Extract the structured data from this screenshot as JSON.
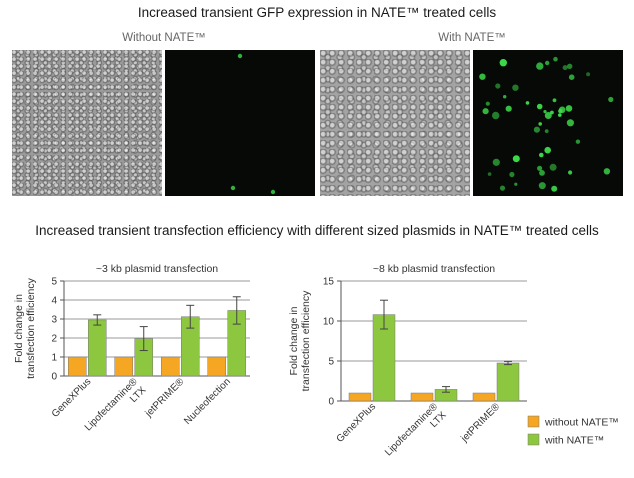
{
  "titles": {
    "top": "Increased transient GFP expression in NATE™ treated cells",
    "middle": "Increased transient transfection efficiency with different sized plasmids in NATE™ treated cells"
  },
  "image_panels": {
    "without_label": "Without NATE™",
    "with_label": "With NATE™"
  },
  "colors": {
    "without": "#f5a623",
    "with": "#8dc63f",
    "grid": "#999999",
    "gfp": "#3ddc4a"
  },
  "legend": [
    {
      "label": "without NATE™",
      "color": "#f5a623"
    },
    {
      "label": "with NATE™",
      "color": "#8dc63f"
    }
  ],
  "chart_data": [
    {
      "type": "bar",
      "title": "~3 kb plasmid transfection",
      "ylabel": "Fold change in transfection efficiency",
      "ylim": [
        0,
        5
      ],
      "yticks": [
        "0",
        "1",
        "2",
        "3",
        "4",
        "5"
      ],
      "grid": true,
      "categories": [
        "GeneXPlus",
        "Lipofectamine® LTX",
        "jetPRIME®",
        "Nucleofection"
      ],
      "series": [
        {
          "name": "without NATE™",
          "values": [
            1,
            1,
            1,
            1
          ],
          "errors": [
            0,
            0,
            0,
            0
          ]
        },
        {
          "name": "with NATE™",
          "values": [
            2.95,
            1.97,
            3.12,
            3.45
          ],
          "errors": [
            0.27,
            0.63,
            0.6,
            0.72
          ]
        }
      ]
    },
    {
      "type": "bar",
      "title": "~8 kb plasmid transfection",
      "ylabel": "Fold change in transfection efficiency",
      "ylim": [
        0,
        15
      ],
      "yticks": [
        "0",
        "5",
        "10",
        "15"
      ],
      "grid": true,
      "categories": [
        "GeneXPlus",
        "Lipofectamine® LTX",
        "jetPRIME®"
      ],
      "series": [
        {
          "name": "without NATE™",
          "values": [
            1,
            1,
            1
          ],
          "errors": [
            0,
            0,
            0
          ]
        },
        {
          "name": "with NATE™",
          "values": [
            10.8,
            1.45,
            4.75
          ],
          "errors": [
            1.8,
            0.35,
            0.2
          ]
        }
      ]
    }
  ]
}
